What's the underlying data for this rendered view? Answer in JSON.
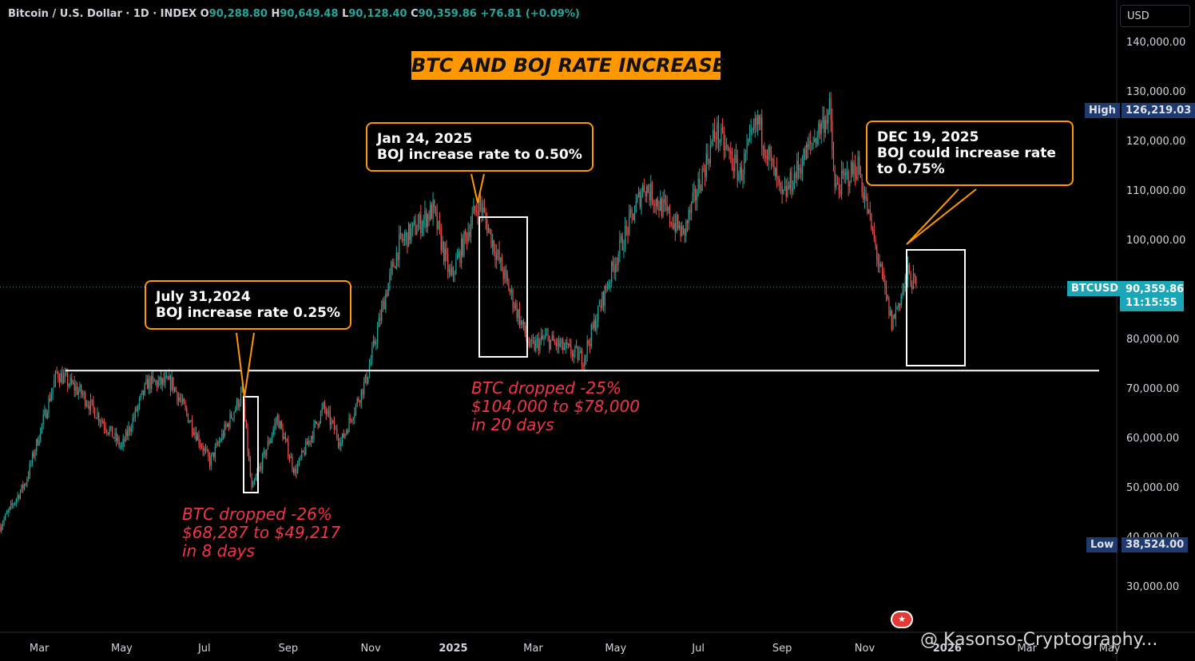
{
  "header": {
    "symbol": "Bitcoin / U.S. Dollar · 1D · INDEX",
    "o_label": "O",
    "o_value": "90,288.80",
    "h_label": "H",
    "h_value": "90,649.48",
    "l_label": "L",
    "l_value": "90,128.40",
    "c_label": "C",
    "c_value": "90,359.86",
    "change": "+76.81 (+0.09%)"
  },
  "title": "BTC AND BOJ RATE INCREASE",
  "currency": "USD",
  "callouts": [
    {
      "line1": "July 31,2024",
      "line2": "BOJ increase rate 0.25%"
    },
    {
      "line1": "Jan 24, 2025",
      "line2": "BOJ increase rate to 0.50%"
    },
    {
      "line1": "DEC 19, 2025",
      "line2": "BOJ could increase rate",
      "line3": "to 0.75%"
    }
  ],
  "drops": [
    {
      "line1": "BTC dropped -26%",
      "line2": "$68,287 to $49,217",
      "line3": "in 8 days"
    },
    {
      "line1": "BTC dropped -25%",
      "line2": "$104,000 to $78,000",
      "line3": "in 20 days"
    }
  ],
  "price_tags": {
    "high_label": "High",
    "high_value": "126,219.03",
    "low_label": "Low",
    "low_value": "38,524.00",
    "symbol": "BTCUSD",
    "last_price": "90,359.86",
    "countdown": "11:15:55"
  },
  "watermark": "@ Kasonso-Cryptography...",
  "colors": {
    "up": "#26a69a",
    "down": "#ef5350",
    "accent": "#ff9800",
    "tag": "#1aa6b7"
  },
  "chart_data": {
    "type": "candlestick",
    "title": "BTC AND BOJ RATE INCREASE",
    "series_name": "Bitcoin / U.S. Dollar",
    "y_axis_ticks": [
      30000,
      40000,
      50000,
      60000,
      70000,
      80000,
      90000,
      100000,
      110000,
      120000,
      130000,
      140000
    ],
    "y_tick_labels": [
      "30,000.00",
      "40,000.00",
      "50,000.00",
      "60,000.00",
      "70,000.00",
      "80,000.00",
      "90,000.00",
      "100,000.00",
      "110,000.00",
      "120,000.00",
      "130,000.00",
      "140,000.00"
    ],
    "x_tick_labels": [
      "Mar",
      "May",
      "Jul",
      "Sep",
      "Nov",
      "2025",
      "Mar",
      "May",
      "Jul",
      "Sep",
      "Nov",
      "2026",
      "Mar",
      "May"
    ],
    "ylim": [
      20000,
      150000
    ],
    "support_level": 73500,
    "close_path": [
      [
        "2024-02-01",
        42000
      ],
      [
        "2024-02-20",
        51000
      ],
      [
        "2024-03-14",
        73000
      ],
      [
        "2024-04-01",
        69000
      ],
      [
        "2024-05-01",
        58000
      ],
      [
        "2024-05-20",
        71000
      ],
      [
        "2024-06-07",
        71000
      ],
      [
        "2024-07-05",
        55000
      ],
      [
        "2024-07-29",
        69000
      ],
      [
        "2024-08-05",
        49217
      ],
      [
        "2024-08-24",
        64000
      ],
      [
        "2024-09-06",
        53000
      ],
      [
        "2024-09-27",
        66000
      ],
      [
        "2024-10-10",
        59000
      ],
      [
        "2024-10-29",
        72000
      ],
      [
        "2024-11-12",
        89000
      ],
      [
        "2024-11-22",
        99000
      ],
      [
        "2024-12-17",
        106000
      ],
      [
        "2024-12-30",
        92000
      ],
      [
        "2025-01-20",
        108000
      ],
      [
        "2025-02-02",
        97000
      ],
      [
        "2025-02-27",
        78000
      ],
      [
        "2025-03-10",
        80000
      ],
      [
        "2025-04-07",
        76000
      ],
      [
        "2025-05-01",
        96000
      ],
      [
        "2025-05-22",
        111000
      ],
      [
        "2025-06-20",
        101000
      ],
      [
        "2025-07-14",
        122000
      ],
      [
        "2025-08-01",
        113000
      ],
      [
        "2025-08-14",
        124000
      ],
      [
        "2025-09-01",
        108000
      ],
      [
        "2025-09-18",
        117000
      ],
      [
        "2025-10-06",
        126219
      ],
      [
        "2025-10-10",
        110000
      ],
      [
        "2025-10-27",
        115000
      ],
      [
        "2025-11-21",
        83000
      ],
      [
        "2025-12-03",
        93000
      ],
      [
        "2025-12-09",
        90359.86
      ]
    ],
    "annotations": [
      {
        "date": "2024-07-31",
        "text": "BOJ increase rate 0.25%"
      },
      {
        "date": "2025-01-24",
        "text": "BOJ increase rate to 0.50%"
      },
      {
        "date": "2025-12-19",
        "text": "BOJ could increase rate to 0.75%"
      }
    ]
  }
}
